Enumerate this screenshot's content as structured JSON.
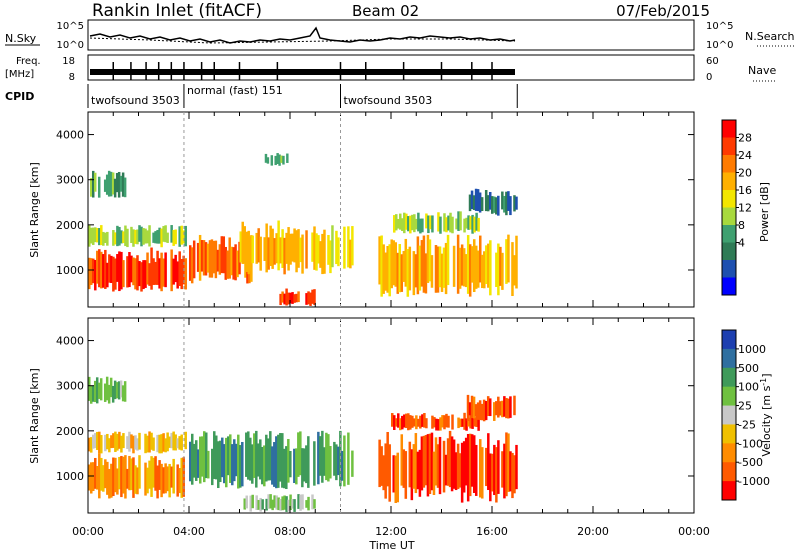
{
  "header": {
    "station": "Rankin Inlet (fitACF)",
    "beam": "Beam 02",
    "date": "07/Feb/2015"
  },
  "noise_panel": {
    "left_label": "N.Sky",
    "left_ticks": [
      "10^5",
      "10^0"
    ],
    "right_ticks": [
      "10^5",
      "10^0"
    ],
    "right_label": "N.Search"
  },
  "freq_panel": {
    "left_label_top": "Freq.",
    "left_label_unit": "[MHz]",
    "left_ticks": [
      "18",
      "8"
    ],
    "right_ticks": [
      "60",
      "0"
    ],
    "right_label": "Nave"
  },
  "cpid": {
    "label": "CPID",
    "segments": [
      {
        "name": "twofsound 3503",
        "start_hour": 0.0,
        "end_hour": 3.8
      },
      {
        "name": "normal (fast) 151",
        "start_hour": 3.8,
        "end_hour": 10.0
      },
      {
        "name": "twofsound 3503",
        "start_hour": 10.0,
        "end_hour": 17.0
      }
    ]
  },
  "axes": {
    "xlabel": "Time UT",
    "x_ticks": [
      "00:00",
      "04:00",
      "08:00",
      "12:00",
      "16:00",
      "20:00",
      "00:00"
    ],
    "ylabel": "Slant Range [km]",
    "y_ticks": [
      "1000",
      "2000",
      "3000",
      "4000"
    ],
    "ylim": [
      180,
      4500
    ]
  },
  "power_colorbar": {
    "label": "Power [dB]",
    "ticks": [
      "28",
      "24",
      "20",
      "16",
      "12",
      "8",
      "4"
    ],
    "colors": [
      "#ff0000",
      "#ff3a00",
      "#ff7b00",
      "#ffb000",
      "#f3e600",
      "#a8d93e",
      "#3fa070",
      "#2f7b56",
      "#1e50b0",
      "#0000ff"
    ]
  },
  "velocity_colorbar": {
    "label": "Velocity [m s^-1]",
    "ticks": [
      "1000",
      "500",
      "100",
      "25",
      "-25",
      "-100",
      "-500",
      "-1000"
    ],
    "colors": [
      "#1d3fb0",
      "#2f6fa0",
      "#3f9a5a",
      "#6fc040",
      "#c8c8c8",
      "#f0c000",
      "#ff8c00",
      "#ff5a00",
      "#ff0000"
    ]
  },
  "chart_data": {
    "type": "heatmap",
    "title": "Rankin Inlet (fitACF)",
    "x_range_hours": [
      0,
      24
    ],
    "y_range_km": [
      180,
      4500
    ],
    "data_end_hour": 17.0,
    "power_regions": [
      {
        "t0": 0.0,
        "t1": 3.9,
        "r0": 500,
        "r1": 1500,
        "level": 1
      },
      {
        "t0": 0.0,
        "t1": 3.9,
        "r0": 1500,
        "r1": 2000,
        "level": 5
      },
      {
        "t0": 4.0,
        "t1": 6.5,
        "r0": 700,
        "r1": 1800,
        "level": 2
      },
      {
        "t0": 6.0,
        "t1": 9.0,
        "r0": 900,
        "r1": 2100,
        "level": 3
      },
      {
        "t0": 7.5,
        "t1": 9.0,
        "r0": 200,
        "r1": 600,
        "level": 1
      },
      {
        "t0": 9.0,
        "t1": 10.5,
        "r0": 900,
        "r1": 2000,
        "level": 4
      },
      {
        "t0": 11.5,
        "t1": 17.0,
        "r0": 400,
        "r1": 1800,
        "level": 3
      },
      {
        "t0": 12.0,
        "t1": 15.5,
        "r0": 1800,
        "r1": 2300,
        "level": 5
      },
      {
        "t0": 0.0,
        "t1": 1.5,
        "r0": 2600,
        "r1": 3200,
        "level": 6
      },
      {
        "t0": 7.0,
        "t1": 8.0,
        "r0": 3300,
        "r1": 3600,
        "level": 6
      },
      {
        "t0": 15.0,
        "t1": 17.0,
        "r0": 2200,
        "r1": 2800,
        "level": 7
      }
    ],
    "velocity_regions": [
      {
        "t0": 0.0,
        "t1": 3.9,
        "r0": 500,
        "r1": 1500,
        "level": 6
      },
      {
        "t0": 0.0,
        "t1": 3.9,
        "r0": 1500,
        "r1": 2000,
        "level": 5
      },
      {
        "t0": 4.0,
        "t1": 10.5,
        "r0": 700,
        "r1": 2000,
        "level": 2
      },
      {
        "t0": 6.0,
        "t1": 9.0,
        "r0": 200,
        "r1": 600,
        "level": 3
      },
      {
        "t0": 11.5,
        "t1": 17.0,
        "r0": 400,
        "r1": 2000,
        "level": 7
      },
      {
        "t0": 12.0,
        "t1": 15.5,
        "r0": 2000,
        "r1": 2400,
        "level": 7
      },
      {
        "t0": 15.0,
        "t1": 17.0,
        "r0": 2200,
        "r1": 2800,
        "level": 7
      },
      {
        "t0": 0.0,
        "t1": 1.5,
        "r0": 2600,
        "r1": 3200,
        "level": 3
      }
    ]
  }
}
